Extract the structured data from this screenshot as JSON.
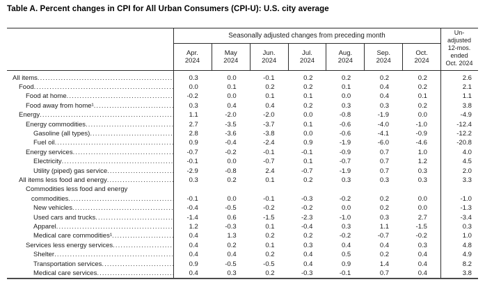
{
  "title": "Table A. Percent changes in CPI for All Urban Consumers (CPI-U): U.S. city average",
  "table": {
    "col_group_header": "Seasonally adjusted changes from preceding month",
    "unadjusted_header": "Un-\nadjusted\n12-mos.\nended\nOct. 2024",
    "month_headers": [
      "Apr.\n2024",
      "May\n2024",
      "Jun.\n2024",
      "Jul.\n2024",
      "Aug.\n2024",
      "Sep.\n2024",
      "Oct.\n2024"
    ],
    "rows": [
      {
        "label": "All items",
        "indent": 0,
        "values": [
          "0.3",
          "0.0",
          "-0.1",
          "0.2",
          "0.2",
          "0.2",
          "0.2",
          "2.6"
        ]
      },
      {
        "label": "Food",
        "indent": 1,
        "values": [
          "0.0",
          "0.1",
          "0.2",
          "0.2",
          "0.1",
          "0.4",
          "0.2",
          "2.1"
        ]
      },
      {
        "label": "Food at home",
        "indent": 2,
        "values": [
          "-0.2",
          "0.0",
          "0.1",
          "0.1",
          "0.0",
          "0.4",
          "0.1",
          "1.1"
        ]
      },
      {
        "label": "Food away from home¹",
        "indent": 2,
        "values": [
          "0.3",
          "0.4",
          "0.4",
          "0.2",
          "0.3",
          "0.3",
          "0.2",
          "3.8"
        ]
      },
      {
        "label": "Energy",
        "indent": 1,
        "values": [
          "1.1",
          "-2.0",
          "-2.0",
          "0.0",
          "-0.8",
          "-1.9",
          "0.0",
          "-4.9"
        ]
      },
      {
        "label": "Energy commodities",
        "indent": 2,
        "values": [
          "2.7",
          "-3.5",
          "-3.7",
          "0.1",
          "-0.6",
          "-4.0",
          "-1.0",
          "-12.4"
        ]
      },
      {
        "label": "Gasoline (all types)",
        "indent": 3,
        "values": [
          "2.8",
          "-3.6",
          "-3.8",
          "0.0",
          "-0.6",
          "-4.1",
          "-0.9",
          "-12.2"
        ]
      },
      {
        "label": "Fuel oil",
        "indent": 3,
        "values": [
          "0.9",
          "-0.4",
          "-2.4",
          "0.9",
          "-1.9",
          "-6.0",
          "-4.6",
          "-20.8"
        ]
      },
      {
        "label": "Energy services",
        "indent": 2,
        "values": [
          "-0.7",
          "-0.2",
          "-0.1",
          "-0.1",
          "-0.9",
          "0.7",
          "1.0",
          "4.0"
        ]
      },
      {
        "label": "Electricity",
        "indent": 3,
        "values": [
          "-0.1",
          "0.0",
          "-0.7",
          "0.1",
          "-0.7",
          "0.7",
          "1.2",
          "4.5"
        ]
      },
      {
        "label": "Utility (piped) gas service",
        "indent": 3,
        "values": [
          "-2.9",
          "-0.8",
          "2.4",
          "-0.7",
          "-1.9",
          "0.7",
          "0.3",
          "2.0"
        ]
      },
      {
        "label": "All items less food and energy",
        "indent": 1,
        "values": [
          "0.3",
          "0.2",
          "0.1",
          "0.2",
          "0.3",
          "0.3",
          "0.3",
          "3.3"
        ]
      },
      {
        "label": "Commodities less food and energy\n   commodities",
        "indent": 2,
        "values": [
          "-0.1",
          "0.0",
          "-0.1",
          "-0.3",
          "-0.2",
          "0.2",
          "0.0",
          "-1.0"
        ]
      },
      {
        "label": "New vehicles",
        "indent": 3,
        "values": [
          "-0.4",
          "-0.5",
          "-0.2",
          "-0.2",
          "0.0",
          "0.2",
          "0.0",
          "-1.3"
        ]
      },
      {
        "label": "Used cars and trucks",
        "indent": 3,
        "values": [
          "-1.4",
          "0.6",
          "-1.5",
          "-2.3",
          "-1.0",
          "0.3",
          "2.7",
          "-3.4"
        ]
      },
      {
        "label": "Apparel",
        "indent": 3,
        "values": [
          "1.2",
          "-0.3",
          "0.1",
          "-0.4",
          "0.3",
          "1.1",
          "-1.5",
          "0.3"
        ]
      },
      {
        "label": "Medical care commodities¹",
        "indent": 3,
        "values": [
          "0.4",
          "1.3",
          "0.2",
          "0.2",
          "-0.2",
          "-0.7",
          "-0.2",
          "1.0"
        ]
      },
      {
        "label": "Services less energy services",
        "indent": 2,
        "values": [
          "0.4",
          "0.2",
          "0.1",
          "0.3",
          "0.4",
          "0.4",
          "0.3",
          "4.8"
        ]
      },
      {
        "label": "Shelter",
        "indent": 3,
        "values": [
          "0.4",
          "0.4",
          "0.2",
          "0.4",
          "0.5",
          "0.2",
          "0.4",
          "4.9"
        ]
      },
      {
        "label": "Transportation services",
        "indent": 3,
        "values": [
          "0.9",
          "-0.5",
          "-0.5",
          "0.4",
          "0.9",
          "1.4",
          "0.4",
          "8.2"
        ]
      },
      {
        "label": "Medical care services",
        "indent": 3,
        "values": [
          "0.4",
          "0.3",
          "0.2",
          "-0.3",
          "-0.1",
          "0.7",
          "0.4",
          "3.8"
        ]
      }
    ]
  }
}
